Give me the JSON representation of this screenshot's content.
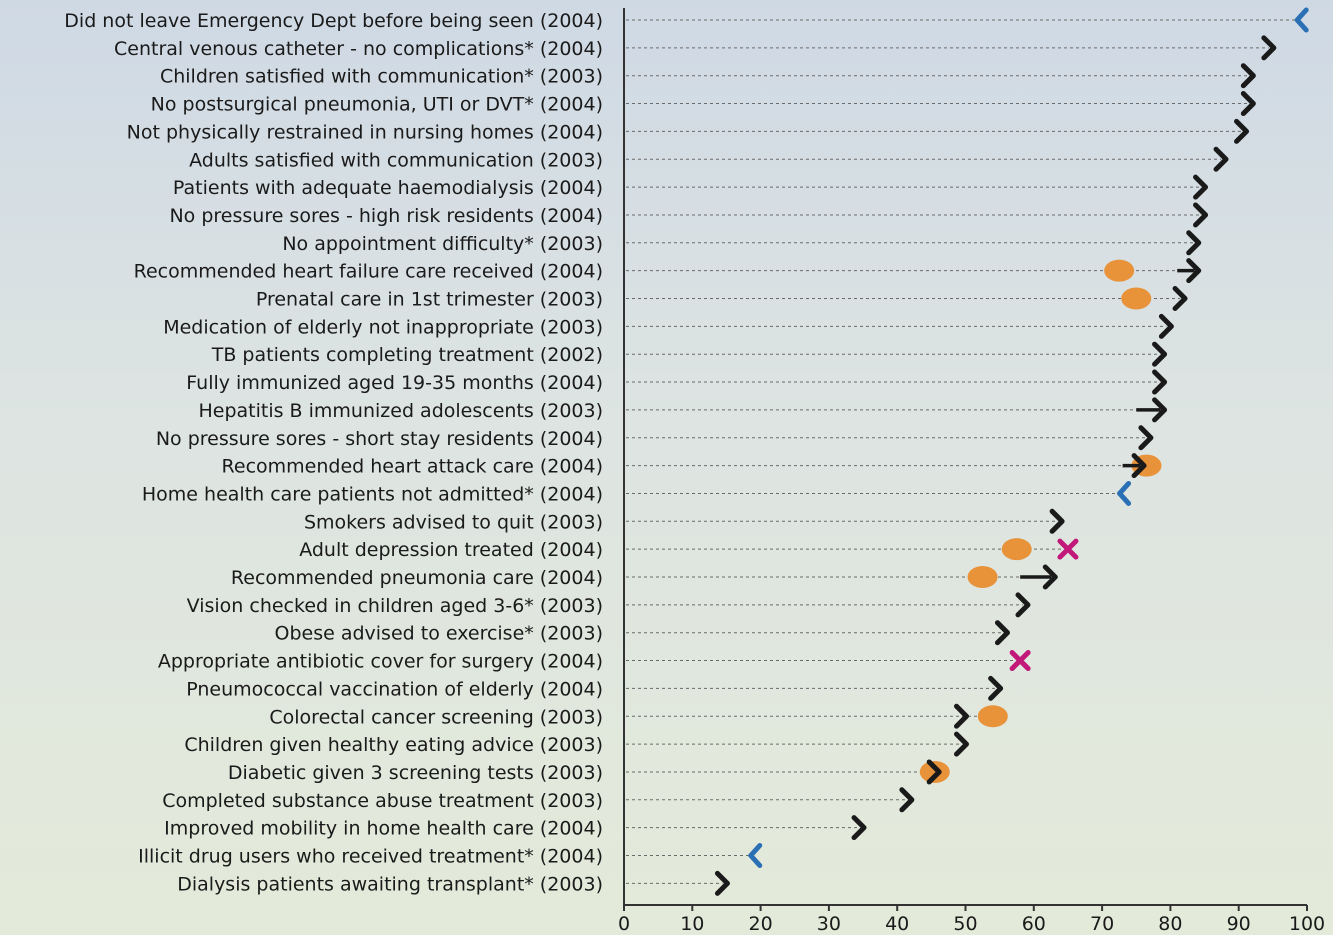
{
  "chart_data": {
    "type": "scatter",
    "title": "",
    "xlabel": "",
    "ylabel": "",
    "xlim": [
      0,
      100
    ],
    "xticks": [
      0,
      10,
      20,
      30,
      40,
      50,
      60,
      70,
      80,
      90,
      100
    ],
    "grid": false,
    "marker_colors": {
      "arrow": "#1a1a1a",
      "reverse_arrow": "#2b6fb5",
      "dot": "#e8923a",
      "cross": "#c2187a"
    },
    "rows": [
      {
        "label": "Did not leave Emergency Dept before being seen (2004)",
        "value": 99,
        "marker": "reverse-arrow"
      },
      {
        "label": "Central venous catheter - no complications* (2004)",
        "value": 95,
        "marker": "arrow"
      },
      {
        "label": "Children satisfied with communication* (2003)",
        "value": 92,
        "marker": "arrow"
      },
      {
        "label": "No postsurgical pneumonia, UTI or DVT* (2004)",
        "value": 92,
        "marker": "arrow"
      },
      {
        "label": "Not physically restrained in nursing homes (2004)",
        "value": 91,
        "marker": "arrow"
      },
      {
        "label": "Adults satisfied with communication (2003)",
        "value": 88,
        "marker": "arrow"
      },
      {
        "label": "Patients with adequate haemodialysis (2004)",
        "value": 85,
        "marker": "arrow"
      },
      {
        "label": "No pressure sores - high risk residents (2004)",
        "value": 85,
        "marker": "arrow"
      },
      {
        "label": "No appointment difficulty* (2003)",
        "value": 84,
        "marker": "arrow"
      },
      {
        "label": "Recommended heart failure care received (2004)",
        "value": 84,
        "marker": "long-arrow",
        "from": 81,
        "dot": 72.5
      },
      {
        "label": "Prenatal care in 1st trimester (2003)",
        "value": 82,
        "marker": "arrow",
        "dot": 75
      },
      {
        "label": "Medication of elderly not inappropriate (2003)",
        "value": 80,
        "marker": "arrow"
      },
      {
        "label": "TB patients completing treatment (2002)",
        "value": 79,
        "marker": "arrow"
      },
      {
        "label": "Fully immunized aged 19-35 months (2004)",
        "value": 79,
        "marker": "arrow"
      },
      {
        "label": "Hepatitis B immunized adolescents (2003)",
        "value": 79,
        "marker": "long-arrow",
        "from": 75
      },
      {
        "label": "No pressure sores - short stay residents (2004)",
        "value": 77,
        "marker": "arrow"
      },
      {
        "label": "Recommended heart attack care (2004)",
        "value": 76,
        "marker": "long-arrow",
        "from": 73,
        "dot": 76.5
      },
      {
        "label": "Home health care patients not admitted* (2004)",
        "value": 73,
        "marker": "reverse-arrow"
      },
      {
        "label": "Smokers advised to quit (2003)",
        "value": 64,
        "marker": "arrow"
      },
      {
        "label": "Adult depression treated (2004)",
        "value": 65,
        "marker": "cross",
        "dot": 57.5
      },
      {
        "label": "Recommended pneumonia care (2004)",
        "value": 63,
        "marker": "long-arrow",
        "from": 58,
        "dot": 52.5
      },
      {
        "label": "Vision checked in children aged 3-6* (2003)",
        "value": 59,
        "marker": "arrow"
      },
      {
        "label": "Obese advised to exercise* (2003)",
        "value": 56,
        "marker": "arrow"
      },
      {
        "label": "Appropriate antibiotic cover for surgery (2004)",
        "value": 58,
        "marker": "cross"
      },
      {
        "label": "Pneumococcal vaccination of elderly (2004)",
        "value": 55,
        "marker": "arrow"
      },
      {
        "label": "Colorectal cancer screening  (2003)",
        "value": 50,
        "marker": "arrow",
        "dot": 54
      },
      {
        "label": "Children given healthy eating advice (2003)",
        "value": 50,
        "marker": "arrow"
      },
      {
        "label": "Diabetic given 3 screening tests (2003)",
        "value": 46,
        "marker": "arrow",
        "dot": 45.5
      },
      {
        "label": "Completed substance abuse treatment (2003)",
        "value": 42,
        "marker": "arrow"
      },
      {
        "label": "Improved mobility in home health care (2004)",
        "value": 35,
        "marker": "arrow"
      },
      {
        "label": "Illicit drug users who received treatment* (2004)",
        "value": 19,
        "marker": "reverse-arrow"
      },
      {
        "label": "Dialysis patients awaiting transplant* (2003)",
        "value": 15,
        "marker": "arrow"
      }
    ]
  }
}
